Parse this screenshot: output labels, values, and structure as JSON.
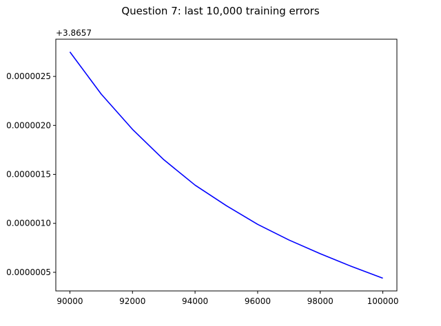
{
  "chart_data": {
    "type": "line",
    "title": "Question 7: last 10,000 training errors",
    "xlabel": "",
    "ylabel": "",
    "y_offset_label": "+3.8657",
    "xlim": [
      89550,
      100450
    ],
    "ylim": [
      3.1e-07,
      2.88e-06
    ],
    "x_ticks": [
      90000,
      92000,
      94000,
      96000,
      98000,
      100000
    ],
    "x_tick_labels": [
      "90000",
      "92000",
      "94000",
      "96000",
      "98000",
      "100000"
    ],
    "y_ticks": [
      5e-07,
      1e-06,
      1.5e-06,
      2e-06,
      2.5e-06
    ],
    "y_tick_labels": [
      "0.0000005",
      "0.0000010",
      "0.0000015",
      "0.0000020",
      "0.0000025"
    ],
    "grid": false,
    "legend": null,
    "series": [
      {
        "color": "#0000ff",
        "x": [
          90000,
          91000,
          92000,
          93000,
          94000,
          95000,
          96000,
          97000,
          98000,
          99000,
          100000
        ],
        "y": [
          2.75e-06,
          2.32e-06,
          1.96e-06,
          1.65e-06,
          1.39e-06,
          1.18e-06,
          9.9e-07,
          8.3e-07,
          6.9e-07,
          5.6e-07,
          4.4e-07
        ]
      }
    ]
  }
}
